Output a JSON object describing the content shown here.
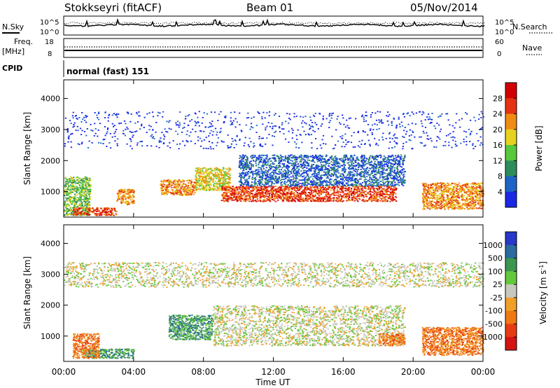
{
  "header": {
    "station": "Stokkseyri (fitACF)",
    "beam": "Beam 01",
    "date": "05/Nov/2014"
  },
  "top_panels": {
    "nsky_label": "N.Sky",
    "nsearch_label": "N.Search",
    "noise_ticks": [
      "10^5",
      "10^0"
    ],
    "freq_label": "Freq.",
    "freq_unit": "[MHz]",
    "freq_ticks": [
      "18",
      "8"
    ],
    "nave_ticks": [
      "60",
      "0"
    ],
    "nave_label": "Nave",
    "cpid_label": "CPID",
    "cpid_text": "normal (fast) 151"
  },
  "chart_data": [
    {
      "type": "heatmap",
      "title": "",
      "xlabel": "Time UT",
      "ylabel": "Slant Range [km]",
      "x_ticks": [
        "00:00",
        "04:00",
        "08:00",
        "12:00",
        "16:00",
        "20:00",
        "00:00"
      ],
      "y_ticks": [
        1000,
        2000,
        3000,
        4000
      ],
      "ylim": [
        180,
        4600
      ],
      "colorbar": {
        "label": "Power [dB]",
        "ticks": [
          "4",
          "8",
          "12",
          "16",
          "20",
          "24",
          "28"
        ],
        "colors": [
          "#1a28e6",
          "#1e64c8",
          "#2e8c5a",
          "#58c83c",
          "#e6d21e",
          "#f08c14",
          "#e63214",
          "#d20000"
        ]
      },
      "regions": [
        {
          "t0": 0.0,
          "t1": 1.5,
          "r0": 250,
          "r1": 1500,
          "level": 3
        },
        {
          "t0": 0.5,
          "t1": 3.0,
          "r0": 250,
          "r1": 500,
          "level": 6
        },
        {
          "t0": 3.0,
          "t1": 4.0,
          "r0": 600,
          "r1": 1100,
          "level": 5
        },
        {
          "t0": 5.5,
          "t1": 7.5,
          "r0": 900,
          "r1": 1400,
          "level": 5
        },
        {
          "t0": 7.5,
          "t1": 9.5,
          "r0": 1050,
          "r1": 1800,
          "level": 4
        },
        {
          "t0": 9.0,
          "t1": 19.0,
          "r0": 700,
          "r1": 1200,
          "level": 6
        },
        {
          "t0": 10.0,
          "t1": 19.5,
          "r0": 1200,
          "r1": 2200,
          "level": 1
        },
        {
          "t0": 20.5,
          "t1": 24.0,
          "r0": 450,
          "r1": 1300,
          "level": 5
        },
        {
          "t0": 0.0,
          "t1": 24.0,
          "r0": 2400,
          "r1": 3600,
          "level": 0
        }
      ]
    },
    {
      "type": "heatmap",
      "title": "",
      "xlabel": "Time UT",
      "ylabel": "Slant Range [km]",
      "x_ticks": [
        "00:00",
        "04:00",
        "08:00",
        "12:00",
        "16:00",
        "20:00",
        "00:00"
      ],
      "y_ticks": [
        1000,
        2000,
        3000,
        4000
      ],
      "ylim": [
        180,
        4600
      ],
      "colorbar": {
        "label": "Velocity [m s^-1]",
        "ticks": [
          "1000",
          "500",
          "100",
          "25",
          "-25",
          "-100",
          "-500",
          "-1000"
        ],
        "colors": [
          "#2838c8",
          "#2c6aa0",
          "#3c9650",
          "#64c83c",
          "#c8c8c0",
          "#f0a028",
          "#f07814",
          "#e63c14",
          "#d21414"
        ]
      },
      "regions": [
        {
          "t0": 1.0,
          "t1": 4.0,
          "r0": 300,
          "r1": 600,
          "level": 2
        },
        {
          "t0": 0.5,
          "t1": 2.0,
          "r0": 300,
          "r1": 1100,
          "level": 6
        },
        {
          "t0": 6.0,
          "t1": 8.5,
          "r0": 900,
          "r1": 1700,
          "level": 2
        },
        {
          "t0": 8.5,
          "t1": 19.5,
          "r0": 700,
          "r1": 2000,
          "level": 4
        },
        {
          "t0": 18.0,
          "t1": 19.5,
          "r0": 700,
          "r1": 1100,
          "level": 6
        },
        {
          "t0": 20.5,
          "t1": 24.0,
          "r0": 400,
          "r1": 1300,
          "level": 6
        },
        {
          "t0": 0.0,
          "t1": 24.0,
          "r0": 2600,
          "r1": 3400,
          "level": 4
        }
      ]
    }
  ]
}
